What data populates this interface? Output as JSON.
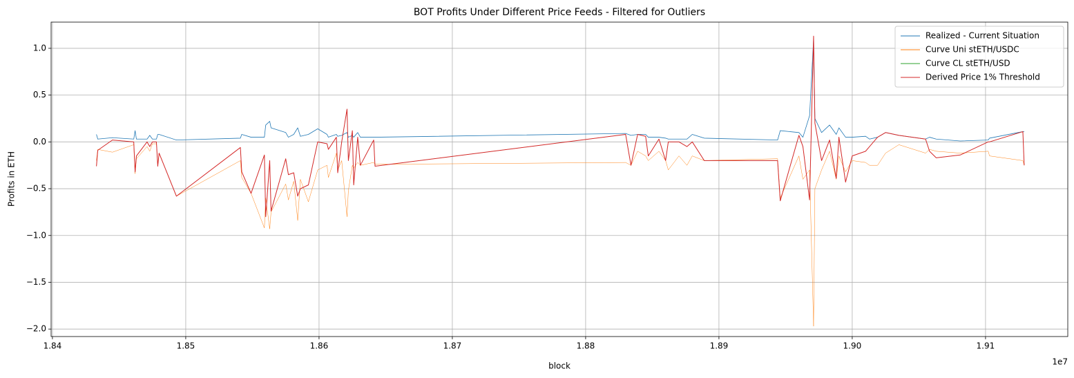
{
  "chart_data": {
    "type": "line",
    "title": "BOT Profits Under Different Price Feeds - Filtered for Outliers",
    "xlabel": "block",
    "ylabel": "Profits in ETH",
    "x_offset_label": "1e7",
    "grid": true,
    "legend": "upper right",
    "xlim": [
      1.8399,
      1.91617
    ],
    "ylim": [
      -2.08,
      1.28
    ],
    "xticks": [
      1.84,
      1.85,
      1.86,
      1.87,
      1.88,
      1.89,
      {
        "value": 1.9,
        "label": "1.90"
      },
      1.91
    ],
    "yticks": [
      {
        "value": -2,
        "label": "−2.0"
      },
      {
        "value": -1.5,
        "label": "−1.5"
      },
      {
        "value": -1,
        "label": "−1.0"
      },
      {
        "value": -0.5,
        "label": "−0.5"
      },
      {
        "value": 0,
        "label": "0.0"
      },
      {
        "value": 0.5,
        "label": "0.5"
      },
      {
        "value": 1,
        "label": "1.0"
      }
    ],
    "x": [
      1.8433,
      1.8434,
      1.8445,
      1.8461,
      1.8462,
      1.8463,
      1.8471,
      1.8473,
      1.8475,
      1.8478,
      1.8479,
      1.848,
      1.8493,
      1.8541,
      1.8542,
      1.8549,
      1.8559,
      1.856,
      1.8563,
      1.8564,
      1.8575,
      1.8577,
      1.8581,
      1.8584,
      1.8586,
      1.8592,
      1.8599,
      1.8606,
      1.8607,
      1.8613,
      1.8614,
      1.8617,
      1.8621,
      1.8622,
      1.8625,
      1.8626,
      1.8629,
      1.8631,
      1.8641,
      1.8642,
      1.883,
      1.8834,
      1.8839,
      1.8845,
      1.8847,
      1.8855,
      1.886,
      1.8862,
      1.887,
      1.8876,
      1.888,
      1.8889,
      1.8944,
      1.8946,
      1.896,
      1.8963,
      1.8968,
      1.8971,
      1.8972,
      1.8977,
      1.8983,
      1.8988,
      1.899,
      1.8995,
      1.9,
      1.901,
      1.9013,
      1.9019,
      1.9025,
      1.9035,
      1.9055,
      1.9058,
      1.9063,
      1.9081,
      1.9102,
      1.9103,
      1.9128,
      1.9129
    ],
    "series": [
      {
        "name": "Realized - Current Situation",
        "color": "#1f77b4",
        "width": 0.8,
        "values": [
          0.08,
          0.03,
          0.045,
          0.03,
          0.12,
          0.03,
          0.03,
          0.07,
          0.03,
          0.03,
          0.08,
          0.08,
          0.02,
          0.04,
          0.08,
          0.05,
          0.05,
          0.18,
          0.22,
          0.15,
          0.1,
          0.05,
          0.08,
          0.15,
          0.06,
          0.08,
          0.14,
          0.08,
          0.05,
          0.08,
          0.06,
          0.07,
          0.1,
          0.05,
          0.07,
          0.05,
          0.1,
          0.05,
          0.05,
          0.05,
          0.09,
          0.07,
          0.08,
          0.08,
          0.05,
          0.05,
          0.04,
          0.03,
          0.03,
          0.03,
          0.08,
          0.04,
          0.02,
          0.12,
          0.1,
          0.05,
          0.28,
          1.1,
          0.25,
          0.1,
          0.18,
          0.08,
          0.15,
          0.05,
          0.05,
          0.06,
          0.03,
          0.05,
          0.1,
          0.07,
          0.03,
          0.05,
          0.03,
          0.01,
          0.02,
          0.04,
          0.11,
          0.11
        ]
      },
      {
        "name": "Curve Uni stETH/USDC",
        "color": "#ff7f0e",
        "width": 0.5,
        "values": [
          -0.2,
          -0.08,
          -0.11,
          -0.03,
          -0.34,
          -0.18,
          -0.05,
          -0.1,
          -0.02,
          -0.02,
          -0.25,
          -0.12,
          -0.58,
          -0.2,
          -0.38,
          -0.55,
          -0.92,
          -0.6,
          -0.93,
          -0.75,
          -0.45,
          -0.62,
          -0.42,
          -0.84,
          -0.4,
          -0.64,
          -0.3,
          -0.25,
          -0.38,
          -0.12,
          -0.3,
          -0.2,
          -0.8,
          -0.52,
          -0.25,
          -0.28,
          -0.22,
          -0.25,
          -0.22,
          -0.24,
          -0.22,
          -0.25,
          -0.1,
          -0.15,
          -0.2,
          -0.1,
          -0.2,
          -0.3,
          -0.15,
          -0.25,
          -0.15,
          -0.2,
          -0.18,
          -0.6,
          -0.15,
          -0.4,
          -0.3,
          -1.97,
          -0.5,
          -0.3,
          -0.1,
          -0.4,
          -0.15,
          -0.32,
          -0.2,
          -0.22,
          -0.25,
          -0.25,
          -0.12,
          -0.03,
          -0.12,
          -0.08,
          -0.1,
          -0.12,
          -0.1,
          -0.15,
          -0.2,
          -0.25
        ]
      },
      {
        "name": "Curve CL stETH/USD",
        "color": "#2ca02c",
        "width": 0.5,
        "values": [
          -0.26,
          -0.09,
          0.02,
          0,
          -0.32,
          -0.15,
          0,
          -0.05,
          0,
          0,
          -0.26,
          -0.12,
          -0.58,
          -0.06,
          -0.32,
          -0.55,
          -0.14,
          -0.8,
          -0.2,
          -0.74,
          -0.18,
          -0.35,
          -0.33,
          -0.58,
          -0.5,
          -0.46,
          0,
          -0.02,
          -0.08,
          0.05,
          -0.33,
          0,
          0.35,
          -0.2,
          0.12,
          -0.46,
          0.05,
          -0.25,
          0.02,
          -0.26,
          0.08,
          -0.25,
          0.08,
          0.06,
          -0.15,
          0.03,
          -0.2,
          0,
          0,
          -0.05,
          0,
          -0.2,
          -0.2,
          -0.63,
          0.07,
          -0.05,
          -0.62,
          1.12,
          0.2,
          -0.2,
          0.02,
          -0.39,
          0.05,
          -0.43,
          -0.15,
          -0.1,
          -0.05,
          0.05,
          0.1,
          0.07,
          0.03,
          -0.1,
          -0.17,
          -0.14,
          0,
          0,
          0.11,
          -0.25
        ]
      },
      {
        "name": "Derived Price 1% Threshold",
        "color": "#d62728",
        "width": 1,
        "values": [
          -0.26,
          -0.09,
          0.02,
          0,
          -0.32,
          -0.15,
          0,
          -0.05,
          0,
          0,
          -0.26,
          -0.12,
          -0.58,
          -0.06,
          -0.32,
          -0.55,
          -0.14,
          -0.8,
          -0.2,
          -0.74,
          -0.18,
          -0.35,
          -0.33,
          -0.58,
          -0.5,
          -0.46,
          0,
          -0.02,
          -0.08,
          0.05,
          -0.33,
          0,
          0.35,
          -0.2,
          0.12,
          -0.46,
          0.05,
          -0.25,
          0.02,
          -0.26,
          0.08,
          -0.25,
          0.08,
          0.06,
          -0.15,
          0.03,
          -0.2,
          0,
          0,
          -0.05,
          0,
          -0.2,
          -0.2,
          -0.63,
          0.07,
          -0.05,
          -0.62,
          1.13,
          0.2,
          -0.2,
          0.02,
          -0.39,
          0.05,
          -0.43,
          -0.15,
          -0.1,
          -0.05,
          0.05,
          0.1,
          0.07,
          0.03,
          -0.1,
          -0.17,
          -0.14,
          0,
          0,
          0.11,
          -0.25
        ]
      }
    ]
  }
}
